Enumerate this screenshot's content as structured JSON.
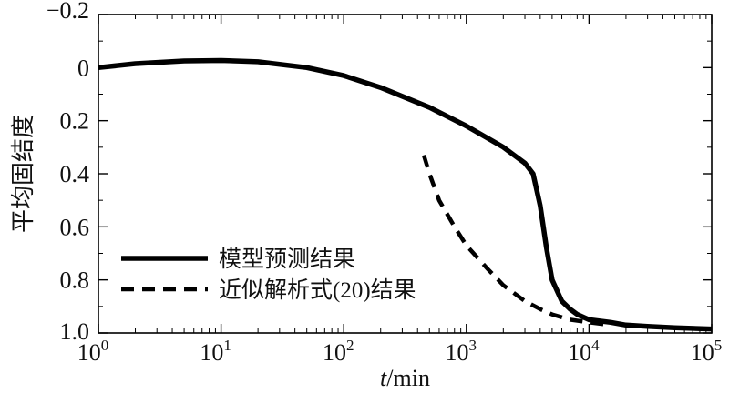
{
  "chart_data": {
    "type": "line",
    "xlabel_italic": "t",
    "xlabel_rest": "/min",
    "ylabel": "平均固结度",
    "x_scale": "log",
    "xlim": [
      1,
      100000
    ],
    "ylim": [
      -0.2,
      1.0
    ],
    "y_inverted": true,
    "grid": false,
    "legend_position": "lower-left",
    "x_ticks": [
      {
        "base": "10",
        "exp": "0"
      },
      {
        "base": "10",
        "exp": "1"
      },
      {
        "base": "10",
        "exp": "2"
      },
      {
        "base": "10",
        "exp": "3"
      },
      {
        "base": "10",
        "exp": "4"
      },
      {
        "base": "10",
        "exp": "5"
      }
    ],
    "y_ticks": [
      "−0.2",
      "0",
      "0.2",
      "0.4",
      "0.6",
      "0.8",
      "1.0"
    ],
    "y_tick_values": [
      -0.2,
      0,
      0.2,
      0.4,
      0.6,
      0.8,
      1.0
    ],
    "series": [
      {
        "name": "模型预测结果",
        "style": "solid",
        "color": "#000000",
        "x": [
          1,
          2,
          5,
          10,
          20,
          50,
          100,
          200,
          500,
          1000,
          2000,
          3000,
          3500,
          4000,
          4500,
          5000,
          6000,
          7000,
          8000,
          10000,
          15000,
          20000,
          30000,
          50000,
          100000
        ],
        "y": [
          0.0,
          -0.015,
          -0.025,
          -0.027,
          -0.022,
          0.0,
          0.03,
          0.075,
          0.15,
          0.22,
          0.3,
          0.36,
          0.4,
          0.52,
          0.68,
          0.8,
          0.88,
          0.91,
          0.93,
          0.95,
          0.96,
          0.97,
          0.975,
          0.98,
          0.985
        ]
      },
      {
        "name": "近似解析式(20)结果",
        "style": "dashed",
        "color": "#000000",
        "x": [
          450,
          500,
          600,
          800,
          1000,
          1500,
          2000,
          3000,
          4000,
          5000,
          7000,
          10000,
          15000
        ],
        "y": [
          0.33,
          0.4,
          0.5,
          0.6,
          0.67,
          0.76,
          0.82,
          0.88,
          0.91,
          0.93,
          0.95,
          0.96,
          0.97
        ]
      }
    ]
  }
}
